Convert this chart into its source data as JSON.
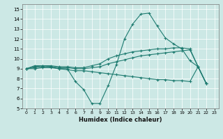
{
  "xlabel": "Humidex (Indice chaleur)",
  "xlim": [
    -0.5,
    23.5
  ],
  "ylim": [
    5,
    15.5
  ],
  "yticks": [
    5,
    6,
    7,
    8,
    9,
    10,
    11,
    12,
    13,
    14,
    15
  ],
  "xticks": [
    0,
    1,
    2,
    3,
    4,
    5,
    6,
    7,
    8,
    9,
    10,
    11,
    12,
    13,
    14,
    15,
    16,
    17,
    18,
    19,
    20,
    21,
    22,
    23
  ],
  "bg_color": "#cce8e5",
  "line_color": "#1e7b70",
  "lines": [
    {
      "x": [
        0,
        1,
        2,
        3,
        4,
        5,
        6,
        7,
        8,
        9,
        10,
        11,
        12,
        13,
        14,
        15,
        16,
        17,
        18,
        19,
        20,
        21,
        22
      ],
      "y": [
        9.0,
        9.3,
        9.3,
        9.2,
        9.0,
        9.0,
        7.7,
        6.9,
        5.5,
        5.5,
        7.3,
        9.4,
        12.0,
        13.5,
        14.5,
        14.6,
        13.3,
        12.1,
        11.5,
        11.0,
        9.8,
        9.2,
        7.5
      ]
    },
    {
      "x": [
        0,
        1,
        2,
        3,
        4,
        5,
        6,
        7,
        8,
        9,
        10,
        11,
        12,
        13,
        14,
        15,
        16,
        17,
        18,
        19,
        20,
        21,
        22
      ],
      "y": [
        9.0,
        9.2,
        9.3,
        9.3,
        9.2,
        9.2,
        9.1,
        9.1,
        9.3,
        9.5,
        10.0,
        10.3,
        10.5,
        10.7,
        10.8,
        10.9,
        11.0,
        11.0,
        11.1,
        11.1,
        11.0,
        9.2,
        7.5
      ]
    },
    {
      "x": [
        0,
        1,
        2,
        3,
        4,
        5,
        6,
        7,
        8,
        9,
        10,
        11,
        12,
        13,
        14,
        15,
        16,
        17,
        18,
        19,
        20,
        21,
        22
      ],
      "y": [
        9.0,
        9.1,
        9.2,
        9.2,
        9.1,
        9.1,
        9.0,
        9.0,
        9.1,
        9.2,
        9.5,
        9.7,
        9.9,
        10.1,
        10.3,
        10.4,
        10.5,
        10.6,
        10.7,
        10.8,
        10.9,
        9.2,
        7.5
      ]
    },
    {
      "x": [
        0,
        1,
        2,
        3,
        4,
        5,
        6,
        7,
        8,
        9,
        10,
        11,
        12,
        13,
        14,
        15,
        16,
        17,
        18,
        19,
        20,
        21,
        22
      ],
      "y": [
        9.0,
        9.0,
        9.1,
        9.1,
        9.0,
        8.9,
        8.8,
        8.8,
        8.7,
        8.6,
        8.5,
        8.4,
        8.3,
        8.2,
        8.1,
        8.0,
        7.9,
        7.9,
        7.8,
        7.8,
        7.7,
        9.2,
        7.5
      ]
    }
  ]
}
